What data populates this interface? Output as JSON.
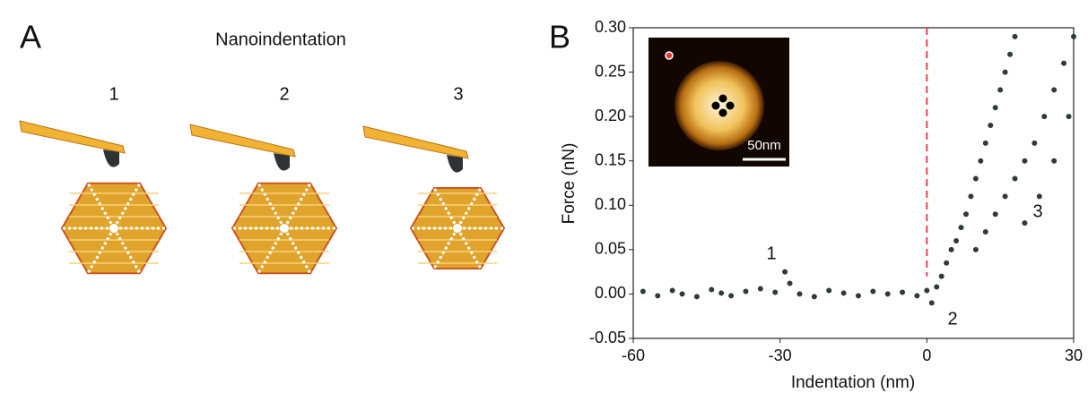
{
  "panel_a": {
    "label": "A",
    "title": "Nanoindentation",
    "steps": [
      "1",
      "2",
      "3"
    ]
  },
  "chart_data": {
    "type": "scatter",
    "panel_label": "B",
    "x_label": "Indentation (nm)",
    "y_label": "Force (nN)",
    "inset_scale": "50nm",
    "annotations": [
      "1",
      "2",
      "3"
    ],
    "color": "#2f3b3b",
    "vline": 0,
    "vline_color": "#e8454a",
    "xlim": [
      -60,
      30
    ],
    "xticks": [
      -60,
      -30,
      0,
      30
    ],
    "ylim": [
      -0.05,
      0.3
    ],
    "yticks": [
      -0.05,
      {
        "value": 0,
        "label": "0.00"
      },
      0.05,
      {
        "value": 0.1,
        "label": "0.10"
      },
      0.15,
      {
        "value": 0.2,
        "label": "0.20"
      },
      0.25,
      {
        "value": 0.3,
        "label": "0.30"
      }
    ],
    "x": [
      -58,
      -55,
      -52,
      -50,
      -47,
      -44,
      -42,
      -40,
      -37,
      -34,
      -31,
      -29,
      -28,
      -26,
      -23,
      -20,
      -17,
      -14,
      -11,
      -8,
      -5,
      -2,
      0,
      1,
      2,
      3,
      4,
      5,
      6,
      7,
      8,
      9,
      10,
      11,
      12,
      13,
      14,
      15,
      16,
      17,
      18,
      10,
      12,
      14,
      16,
      18,
      20,
      22,
      24,
      26,
      28,
      30,
      20,
      23,
      26,
      29
    ],
    "values": [
      0.003,
      -0.002,
      0.004,
      0,
      -0.003,
      0.005,
      0.001,
      -0.002,
      0.003,
      0.006,
      0.002,
      0.025,
      0.012,
      0,
      -0.003,
      0.004,
      0.001,
      -0.002,
      0.003,
      0,
      0.002,
      -0.002,
      0.004,
      -0.01,
      0.008,
      0.02,
      0.035,
      0.05,
      0.06,
      0.075,
      0.09,
      0.11,
      0.13,
      0.15,
      0.17,
      0.19,
      0.21,
      0.23,
      0.25,
      0.27,
      0.29,
      0.05,
      0.07,
      0.09,
      0.11,
      0.13,
      0.15,
      0.17,
      0.2,
      0.23,
      0.26,
      0.29,
      0.08,
      0.11,
      0.15,
      0.2
    ]
  }
}
